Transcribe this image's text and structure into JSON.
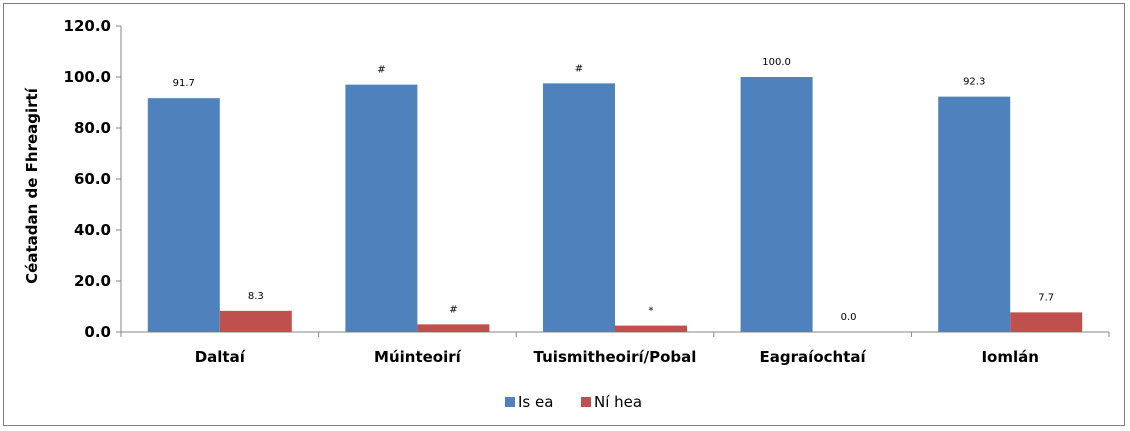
{
  "chart_data": {
    "type": "bar",
    "title": "",
    "xlabel": "",
    "ylabel": "Céatadan de Fhreagirtí",
    "ylim": [
      0,
      120
    ],
    "yticks": [
      "0.0",
      "20.0",
      "40.0",
      "60.0",
      "80.0",
      "100.0",
      "120.0"
    ],
    "grid": false,
    "legend_position": "bottom",
    "categories": [
      "Daltaí",
      "Múinteoirí",
      "Tuismitheoirí/Pobal",
      "Eagraíochtaí",
      "Iomlán"
    ],
    "series": [
      {
        "name": "Is ea",
        "color": "#4f81bd",
        "values": [
          91.7,
          97.0,
          97.5,
          100.0,
          92.3
        ],
        "labels": [
          "91.7",
          "#",
          "#",
          "100.0",
          "92.3"
        ]
      },
      {
        "name": "Ní hea",
        "color": "#c0504d",
        "values": [
          8.3,
          3.0,
          2.5,
          0.0,
          7.7
        ],
        "labels": [
          "8.3",
          "#",
          "*",
          "0.0",
          "7.7"
        ]
      }
    ]
  }
}
